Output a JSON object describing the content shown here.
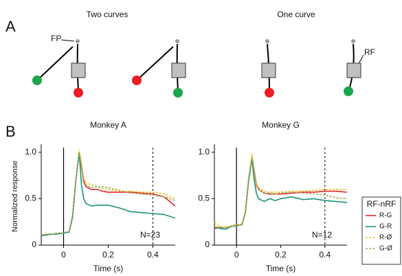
{
  "panel_a": {
    "label": "A",
    "titles": [
      "Two curves",
      "One curve"
    ],
    "labels": [
      "FP",
      "RF"
    ]
  },
  "panel_b_label": "B",
  "chart_data": [
    {
      "type": "line",
      "title": "Monkey A",
      "xlabel": "Time (s)",
      "ylabel": "Normalized response",
      "annotation": "N=23",
      "x": [
        -0.1,
        -0.075,
        -0.05,
        -0.025,
        0,
        0.025,
        0.04,
        0.055,
        0.07,
        0.08,
        0.09,
        0.1,
        0.125,
        0.15,
        0.175,
        0.2,
        0.25,
        0.3,
        0.35,
        0.4,
        0.45,
        0.5
      ],
      "series": [
        {
          "color": "#e3262b",
          "values": [
            0.1,
            0.11,
            0.12,
            0.12,
            0.13,
            0.14,
            0.3,
            0.7,
            1.0,
            0.85,
            0.68,
            0.63,
            0.6,
            0.6,
            0.58,
            0.57,
            0.57,
            0.57,
            0.56,
            0.55,
            0.52,
            0.42
          ]
        },
        {
          "color": "#1a9378",
          "values": [
            0.1,
            0.11,
            0.12,
            0.12,
            0.13,
            0.14,
            0.3,
            0.7,
            1.0,
            0.65,
            0.5,
            0.45,
            0.42,
            0.43,
            0.43,
            0.43,
            0.4,
            0.36,
            0.35,
            0.34,
            0.33,
            0.29
          ]
        },
        {
          "color": "#f2c21b",
          "dash": true,
          "values": [
            0.11,
            0.12,
            0.12,
            0.13,
            0.13,
            0.15,
            0.32,
            0.72,
            1.03,
            0.88,
            0.72,
            0.67,
            0.65,
            0.63,
            0.61,
            0.6,
            0.58,
            0.58,
            0.57,
            0.57,
            0.55,
            0.5
          ]
        },
        {
          "color": "#9aab5a",
          "dash": true,
          "values": [
            0.11,
            0.12,
            0.12,
            0.13,
            0.13,
            0.15,
            0.31,
            0.7,
            1.0,
            0.86,
            0.7,
            0.65,
            0.62,
            0.63,
            0.63,
            0.62,
            0.59,
            0.56,
            0.55,
            0.54,
            0.52,
            0.48
          ]
        }
      ],
      "xlim": [
        -0.1,
        0.5
      ],
      "ylim": [
        0,
        1.05
      ],
      "xticks": [
        0,
        0.2,
        0.4
      ],
      "yticks": [
        0,
        0.5,
        {
          "value": 1,
          "label": "1.0"
        }
      ],
      "marker_line": 0.4
    },
    {
      "type": "line",
      "title": "Monkey G",
      "xlabel": "Time (s)",
      "annotation": "N=12",
      "legend_title": "RF-nRF",
      "x": [
        -0.1,
        -0.075,
        -0.05,
        -0.025,
        0,
        0.025,
        0.04,
        0.055,
        0.07,
        0.08,
        0.09,
        0.1,
        0.125,
        0.15,
        0.175,
        0.2,
        0.25,
        0.3,
        0.35,
        0.4,
        0.45,
        0.5
      ],
      "series": [
        {
          "name": "R-G",
          "color": "#e3262b",
          "values": [
            0.18,
            0.19,
            0.19,
            0.2,
            0.21,
            0.22,
            0.35,
            0.7,
            0.93,
            0.8,
            0.65,
            0.6,
            0.56,
            0.55,
            0.55,
            0.55,
            0.56,
            0.57,
            0.57,
            0.58,
            0.58,
            0.57
          ]
        },
        {
          "name": "G-R",
          "color": "#1a9378",
          "values": [
            0.2,
            0.18,
            0.17,
            0.2,
            0.21,
            0.22,
            0.35,
            0.7,
            0.93,
            0.7,
            0.56,
            0.5,
            0.47,
            0.5,
            0.48,
            0.5,
            0.52,
            0.49,
            0.5,
            0.48,
            0.47,
            0.46
          ]
        },
        {
          "name": "R-Ø",
          "color": "#f2c21b",
          "dash": true,
          "values": [
            0.24,
            0.2,
            0.19,
            0.21,
            0.22,
            0.23,
            0.37,
            0.74,
            0.98,
            0.82,
            0.66,
            0.62,
            0.58,
            0.57,
            0.57,
            0.57,
            0.58,
            0.58,
            0.59,
            0.6,
            0.6,
            0.6
          ]
        },
        {
          "name": "G-Ø",
          "color": "#9aab5a",
          "dash": true,
          "values": [
            0.2,
            0.19,
            0.19,
            0.2,
            0.21,
            0.22,
            0.36,
            0.72,
            0.95,
            0.8,
            0.64,
            0.6,
            0.56,
            0.56,
            0.55,
            0.56,
            0.57,
            0.56,
            0.55,
            0.54,
            0.51,
            0.5
          ]
        }
      ],
      "xlim": [
        -0.1,
        0.5
      ],
      "ylim": [
        0,
        1.05
      ],
      "xticks": [
        0,
        0.2,
        0.4
      ],
      "yticks": [
        0,
        0.5,
        {
          "value": 1,
          "label": "1.0"
        }
      ],
      "marker_line": 0.4
    }
  ]
}
